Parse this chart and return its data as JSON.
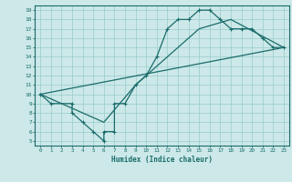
{
  "title": "",
  "xlabel": "Humidex (Indice chaleur)",
  "bg_color": "#cce8e8",
  "grid_color": "#99cccc",
  "line_color": "#1a6b6b",
  "xlim": [
    -0.5,
    23.5
  ],
  "ylim": [
    4.5,
    19.5
  ],
  "xticks": [
    0,
    1,
    2,
    3,
    4,
    5,
    6,
    7,
    8,
    9,
    10,
    11,
    12,
    13,
    14,
    15,
    16,
    17,
    18,
    19,
    20,
    21,
    22,
    23
  ],
  "yticks": [
    5,
    6,
    7,
    8,
    9,
    10,
    11,
    12,
    13,
    14,
    15,
    16,
    17,
    18,
    19
  ],
  "curve1_x": [
    0,
    1,
    3,
    3,
    4,
    5,
    6,
    6,
    7,
    7,
    8,
    9,
    10,
    11,
    12,
    13,
    14,
    15,
    16,
    17,
    18,
    19,
    20,
    21,
    22,
    23
  ],
  "curve1_y": [
    10,
    9,
    9,
    8,
    7,
    6,
    5,
    6,
    6,
    9,
    9,
    11,
    12,
    14,
    17,
    18,
    18,
    19,
    19,
    18,
    17,
    17,
    17,
    16,
    15,
    15
  ],
  "curve2_x": [
    0,
    23
  ],
  "curve2_y": [
    10,
    15
  ],
  "curve3_x": [
    0,
    6,
    9,
    12,
    15,
    18,
    23
  ],
  "curve3_y": [
    10,
    7,
    11,
    14,
    17,
    18,
    15
  ]
}
